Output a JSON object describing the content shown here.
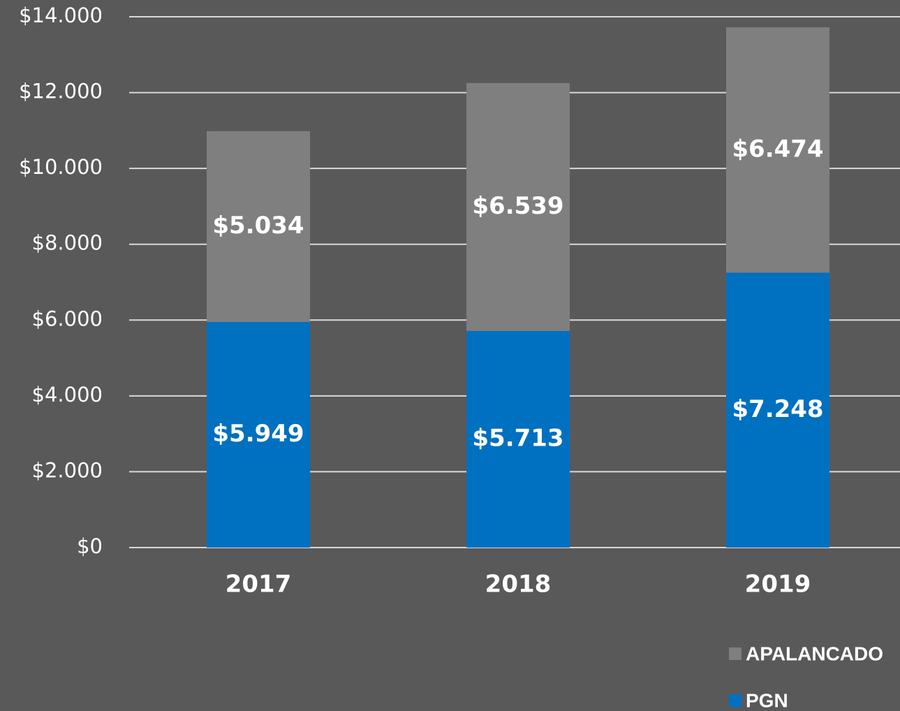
{
  "chart_data": {
    "type": "stacked_bar",
    "categories": [
      "2017",
      "2018",
      "2019"
    ],
    "series": [
      {
        "name": "PGN",
        "color": "#0070c0",
        "values": [
          5949,
          5713,
          7248
        ],
        "value_labels": [
          "$5.949",
          "$5.713",
          "$7.248"
        ]
      },
      {
        "name": "APALANCADO",
        "color": "#7f7f7f",
        "values": [
          5034,
          6539,
          6474
        ],
        "value_labels": [
          "$5.034",
          "$6.539",
          "$6.474"
        ]
      }
    ],
    "ylim": [
      0,
      14000
    ],
    "yticks": [
      {
        "value": 0,
        "label": "$0"
      },
      {
        "value": 2000,
        "label": "$2.000"
      },
      {
        "value": 4000,
        "label": "$4.000"
      },
      {
        "value": 6000,
        "label": "$6.000"
      },
      {
        "value": 8000,
        "label": "$8.000"
      },
      {
        "value": 10000,
        "label": "$10.000"
      },
      {
        "value": 12000,
        "label": "$12.000"
      },
      {
        "value": 14000,
        "label": "$14.000"
      }
    ],
    "grid": true,
    "legend": "bottom-right"
  }
}
